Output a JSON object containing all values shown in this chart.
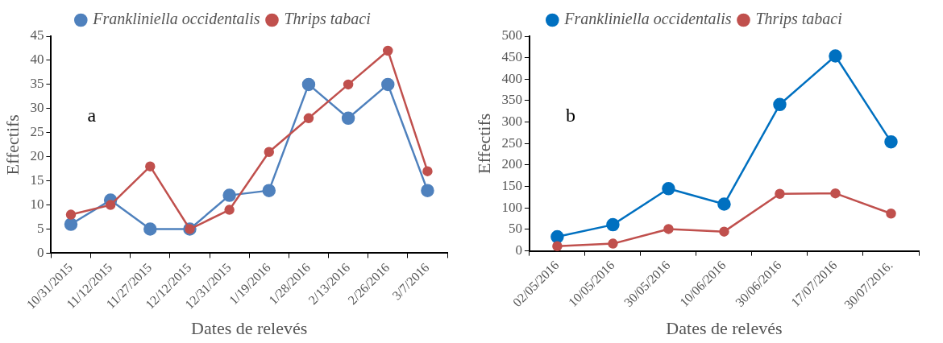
{
  "chart_data": [
    {
      "type": "line",
      "xlabel": "Dates de relevés",
      "ylabel": "Effectifs",
      "annotations": [
        "a"
      ],
      "categories": [
        "10/31/2015",
        "11/12/2015",
        "11/27/2015",
        "12/12/2015",
        "12/31/2015",
        "1/19/2016",
        "1/28/2016",
        "2/13/2016",
        "2/26/2016",
        "3/7/2016"
      ],
      "series": [
        {
          "name": "Frankliniella occidentalis",
          "color": "#4f81bd",
          "values": [
            6,
            11,
            5,
            5,
            12,
            13,
            35,
            28,
            35,
            13
          ]
        },
        {
          "name": "Thrips tabaci",
          "color": "#c0504d",
          "values": [
            8,
            10,
            18,
            5,
            9,
            21,
            28,
            35,
            42,
            17
          ]
        }
      ],
      "ylim": [
        0,
        45
      ],
      "yticks": [
        0,
        5,
        10,
        15,
        20,
        25,
        30,
        35,
        40,
        45
      ],
      "grid": false,
      "legend": "top",
      "marker": "circle"
    },
    {
      "type": "line",
      "xlabel": "Dates de relevés",
      "ylabel": "Effectifs",
      "annotations": [
        "b"
      ],
      "categories": [
        "02/05/2016",
        "10/05/2016",
        "30/05/2016",
        "10/06/2016",
        "30/06/2016",
        "17/07/2016",
        "30/07/2016."
      ],
      "series": [
        {
          "name": "Frankliniella occidentalis",
          "color": "#0070c0",
          "values": [
            33,
            61,
            145,
            109,
            341,
            454,
            254
          ]
        },
        {
          "name": "Thrips tabaci",
          "color": "#c0504d",
          "values": [
            11,
            17,
            51,
            45,
            133,
            134,
            87
          ]
        }
      ],
      "ylim": [
        0,
        500
      ],
      "yticks": [
        0,
        50,
        100,
        150,
        200,
        250,
        300,
        350,
        400,
        450,
        500
      ],
      "grid": false,
      "legend": "top",
      "marker": "circle"
    }
  ]
}
